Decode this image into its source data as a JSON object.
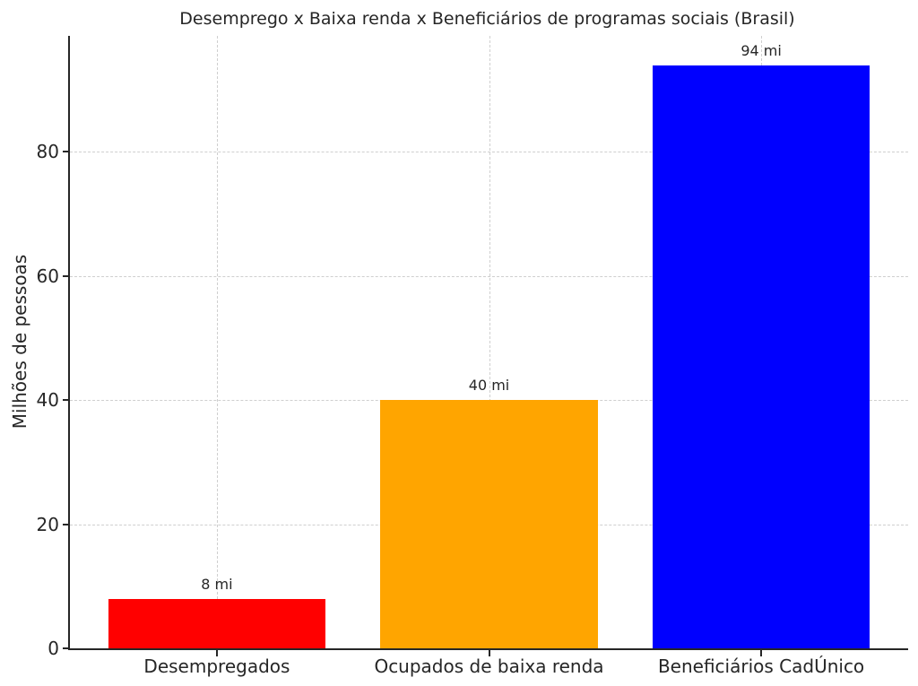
{
  "chart_data": {
    "type": "bar",
    "title": "Desemprego x Baixa renda x Beneficiários de programas sociais (Brasil)",
    "xlabel": "",
    "ylabel": "Milhões de pessoas",
    "categories": [
      "Desempregados",
      "Ocupados de baixa renda",
      "Beneficiários CadÚnico"
    ],
    "values": [
      8,
      40,
      94
    ],
    "bar_labels": [
      "8 mi",
      "40 mi",
      "94 mi"
    ],
    "bar_colors": [
      "#ff0000",
      "#ffa500",
      "#0000ff"
    ],
    "yticks": [
      0,
      20,
      40,
      60,
      80
    ],
    "ylim": [
      0,
      98.7
    ],
    "xlim": [
      -0.54,
      2.54
    ],
    "bar_width_fraction": 0.8,
    "grid": "dashed",
    "grid_color": "#cfcfcf",
    "legend": "none"
  }
}
